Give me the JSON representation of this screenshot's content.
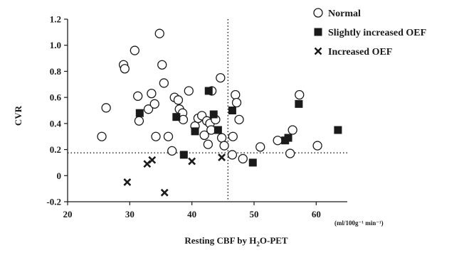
{
  "chart_data": {
    "type": "scatter",
    "xlabel": "Resting CBF by H2O-PET",
    "xlabel_parts": [
      "Resting CBF by H",
      "2",
      "O-PET"
    ],
    "xunit": "(ml/100g⁻¹ min⁻¹)",
    "ylabel": "CVR",
    "xlim": [
      20,
      65
    ],
    "ylim": [
      -0.2,
      1.2
    ],
    "xticks": [
      "20",
      "30",
      "40",
      "50",
      "60"
    ],
    "yticks": [
      "-0.2",
      "0",
      "0.2",
      "0.4",
      "0.6",
      "0.8",
      "1.0",
      "1.2"
    ],
    "reference_lines": {
      "x": 45.8,
      "y": 0.175
    },
    "legend_position": "top-right",
    "series": [
      {
        "name": "Normal",
        "marker": "open-circle",
        "points": [
          [
            25.5,
            0.3
          ],
          [
            26.2,
            0.52
          ],
          [
            29.0,
            0.85
          ],
          [
            29.2,
            0.82
          ],
          [
            30.8,
            0.96
          ],
          [
            31.3,
            0.61
          ],
          [
            31.5,
            0.42
          ],
          [
            33.0,
            0.51
          ],
          [
            33.5,
            0.63
          ],
          [
            34.0,
            0.55
          ],
          [
            34.2,
            0.3
          ],
          [
            34.8,
            1.09
          ],
          [
            35.2,
            0.85
          ],
          [
            35.5,
            0.71
          ],
          [
            36.2,
            0.3
          ],
          [
            36.8,
            0.19
          ],
          [
            37.2,
            0.6
          ],
          [
            37.8,
            0.58
          ],
          [
            38.0,
            0.51
          ],
          [
            38.5,
            0.48
          ],
          [
            38.6,
            0.43
          ],
          [
            39.5,
            0.65
          ],
          [
            40.5,
            0.38
          ],
          [
            41.0,
            0.44
          ],
          [
            41.6,
            0.46
          ],
          [
            42.0,
            0.31
          ],
          [
            42.4,
            0.42
          ],
          [
            42.6,
            0.24
          ],
          [
            42.9,
            0.4
          ],
          [
            43.1,
            0.35
          ],
          [
            43.2,
            0.65
          ],
          [
            43.8,
            0.43
          ],
          [
            44.6,
            0.75
          ],
          [
            44.8,
            0.29
          ],
          [
            45.2,
            0.23
          ],
          [
            46.5,
            0.16
          ],
          [
            46.6,
            0.3
          ],
          [
            47.0,
            0.62
          ],
          [
            47.2,
            0.56
          ],
          [
            47.6,
            0.43
          ],
          [
            48.2,
            0.13
          ],
          [
            51.0,
            0.22
          ],
          [
            53.8,
            0.27
          ],
          [
            55.8,
            0.17
          ],
          [
            56.2,
            0.35
          ],
          [
            57.3,
            0.62
          ],
          [
            60.2,
            0.23
          ]
        ]
      },
      {
        "name": "Slightly increased OEF",
        "marker": "filled-square",
        "points": [
          [
            31.6,
            0.48
          ],
          [
            37.5,
            0.45
          ],
          [
            38.7,
            0.16
          ],
          [
            40.5,
            0.34
          ],
          [
            42.7,
            0.65
          ],
          [
            43.5,
            0.47
          ],
          [
            44.2,
            0.35
          ],
          [
            46.5,
            0.5
          ],
          [
            49.8,
            0.1
          ],
          [
            55.0,
            0.27
          ],
          [
            55.5,
            0.29
          ],
          [
            57.2,
            0.55
          ],
          [
            63.5,
            0.35
          ]
        ]
      },
      {
        "name": "Increased OEF",
        "marker": "cross",
        "points": [
          [
            29.6,
            -0.05
          ],
          [
            32.8,
            0.09
          ],
          [
            33.6,
            0.12
          ],
          [
            35.6,
            -0.13
          ],
          [
            40.0,
            0.11
          ],
          [
            44.8,
            0.14
          ]
        ]
      }
    ]
  }
}
